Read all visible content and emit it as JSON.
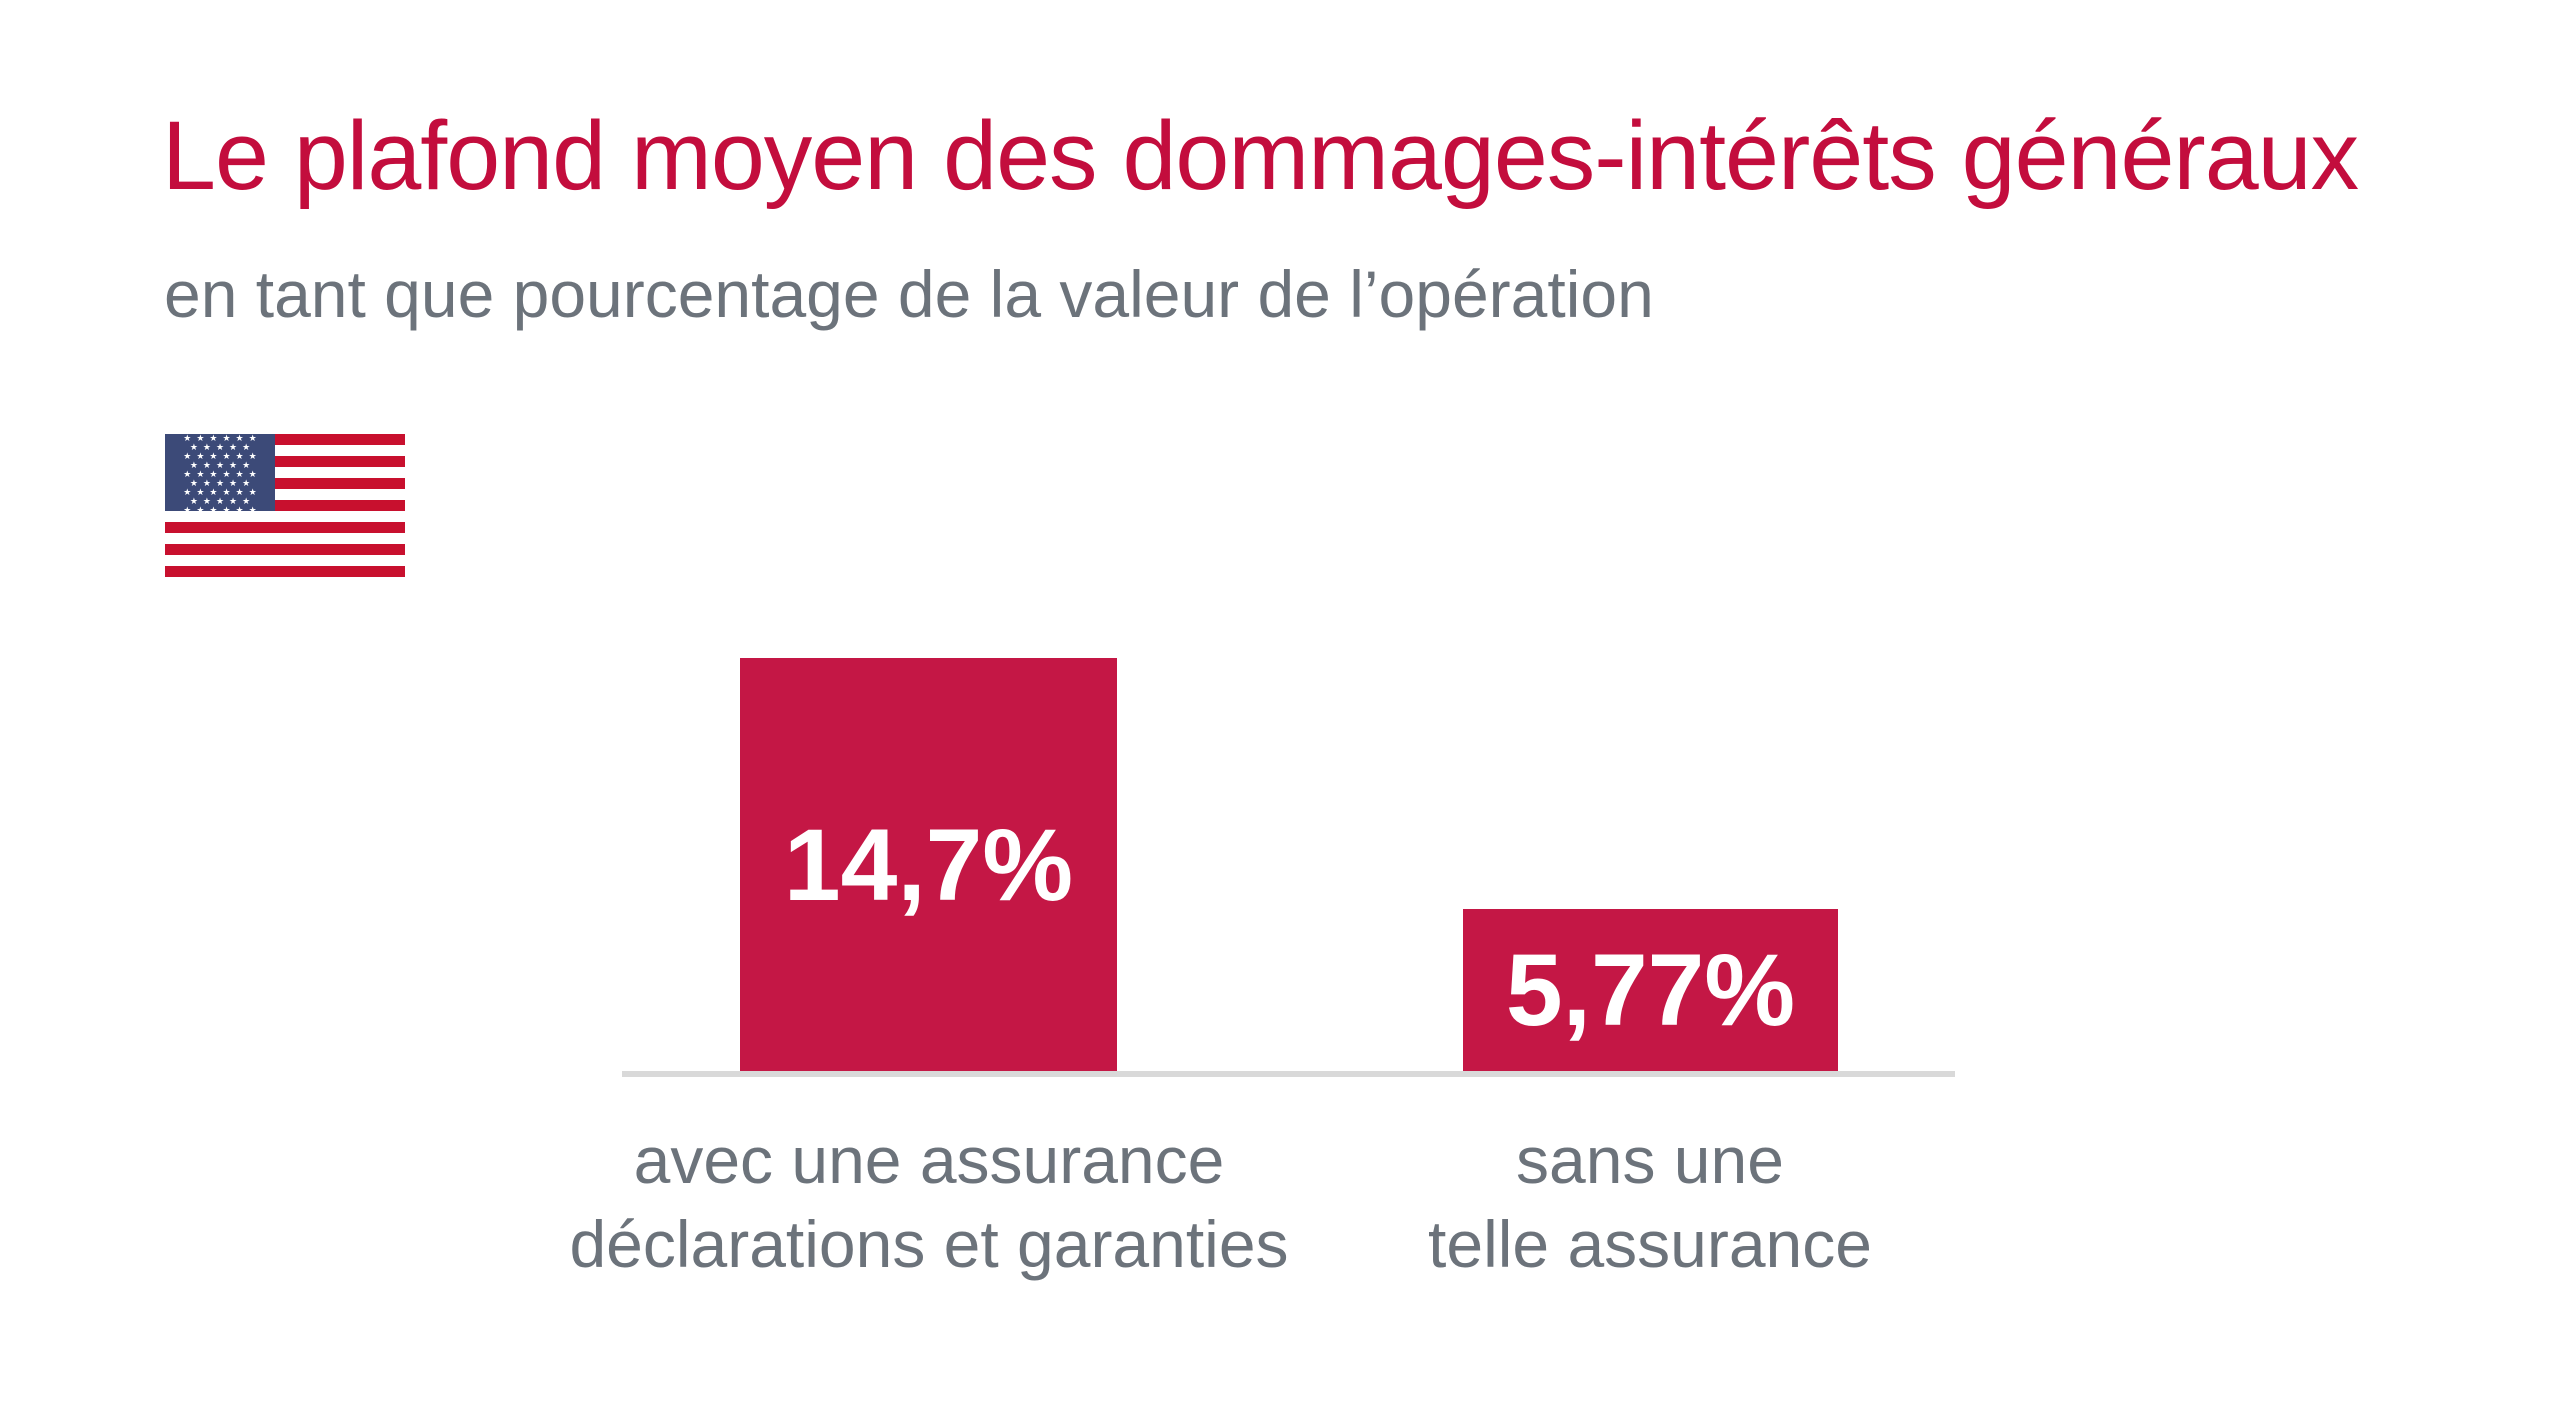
{
  "page": {
    "title": "Le plafond moyen des dommages-intérêts généraux",
    "subtitle": "en tant que pourcentage de la valeur de l’opération"
  },
  "flag_icon": "us-flag-icon",
  "colors": {
    "title_red": "#C30D3D",
    "bar_red": "#C41745",
    "flag_red": "#C8102E",
    "flag_navy": "#3C4A78",
    "text_gray": "#6C737B",
    "axis_gray": "#D9D9D9",
    "background": "#FFFFFF",
    "value_label_color": "#FFFFFF"
  },
  "chart_data": {
    "type": "bar",
    "title": "Le plafond moyen des dommages-intérêts généraux",
    "subtitle": "en tant que pourcentage de la valeur de l’opération",
    "categories": [
      "avec une assurance déclarations et garanties",
      "sans une telle assurance"
    ],
    "category_lines": [
      [
        "avec une assurance",
        "déclarations et garanties"
      ],
      [
        "sans une",
        "telle assurance"
      ]
    ],
    "values": [
      14.7,
      5.77
    ],
    "value_labels": [
      "14,7%",
      "5,77%"
    ],
    "unit": "%",
    "ylim": [
      0,
      14.7
    ],
    "grid": false,
    "legend": "none",
    "bar_color": "#C41745",
    "annotations": [
      "US flag icon marking the data as United States figures"
    ]
  }
}
